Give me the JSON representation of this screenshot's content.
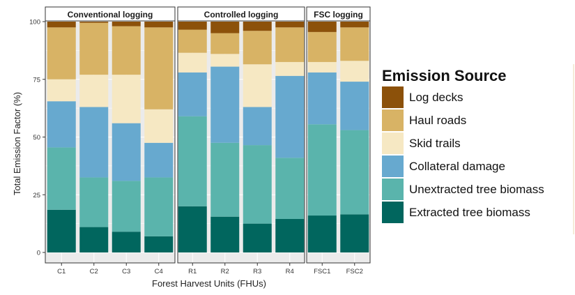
{
  "chart_data": {
    "type": "bar",
    "stacked": true,
    "ylabel": "Total Emission Factor (%)",
    "xlabel": "Forest Harvest Units (FHUs)",
    "ylim": [
      0,
      100
    ],
    "y_ticks": [
      0,
      25,
      50,
      75,
      100
    ],
    "grid": true,
    "legend": {
      "title": "Emission Source",
      "placement": "right",
      "entries": [
        "Log decks",
        "Haul roads",
        "Skid trails",
        "Collateral damage",
        "Unextracted tree biomass",
        "Extracted tree biomass"
      ]
    },
    "panels": [
      {
        "title": "Conventional logging",
        "categories": [
          "C1",
          "C2",
          "C3",
          "C4"
        ],
        "series": [
          {
            "name": "Extracted tree biomass",
            "values": [
              18.5,
              11,
              9,
              7
            ]
          },
          {
            "name": "Unextracted tree biomass",
            "values": [
              27,
              21.5,
              22,
              25.5
            ]
          },
          {
            "name": "Collateral damage",
            "values": [
              20,
              30.5,
              25,
              15
            ]
          },
          {
            "name": "Skid trails",
            "values": [
              9.5,
              14,
              21,
              14.5
            ]
          },
          {
            "name": "Haul roads",
            "values": [
              22.5,
              22.5,
              21,
              35.5
            ]
          },
          {
            "name": "Log decks",
            "values": [
              2.5,
              0.5,
              2,
              2.5
            ]
          }
        ]
      },
      {
        "title": "Controlled logging",
        "categories": [
          "R1",
          "R2",
          "R3",
          "R4"
        ],
        "series": [
          {
            "name": "Extracted tree biomass",
            "values": [
              20,
              15.5,
              12.5,
              14.5
            ]
          },
          {
            "name": "Unextracted tree biomass",
            "values": [
              39,
              32,
              34,
              26.5
            ]
          },
          {
            "name": "Collateral damage",
            "values": [
              19,
              33,
              16.5,
              35.5
            ]
          },
          {
            "name": "Skid trails",
            "values": [
              8.5,
              5.5,
              18.5,
              6
            ]
          },
          {
            "name": "Haul roads",
            "values": [
              10,
              9,
              14.5,
              15
            ]
          },
          {
            "name": "Log decks",
            "values": [
              3.5,
              5,
              4,
              2.5
            ]
          }
        ]
      },
      {
        "title": "FSC logging",
        "categories": [
          "FSC1",
          "FSC2"
        ],
        "series": [
          {
            "name": "Extracted tree biomass",
            "values": [
              16,
              16.5
            ]
          },
          {
            "name": "Unextracted tree biomass",
            "values": [
              39.5,
              36.5
            ]
          },
          {
            "name": "Collateral damage",
            "values": [
              22.5,
              21
            ]
          },
          {
            "name": "Skid trails",
            "values": [
              4.5,
              9
            ]
          },
          {
            "name": "Haul roads",
            "values": [
              13,
              14.5
            ]
          },
          {
            "name": "Log decks",
            "values": [
              4.5,
              2.5
            ]
          }
        ]
      }
    ]
  },
  "colors": {
    "Log decks": "#8c510a",
    "Haul roads": "#d8b365",
    "Skid trails": "#f6e8c3",
    "Collateral damage": "#67a9cf",
    "Unextracted tree biomass": "#5ab4ac",
    "Extracted tree biomass": "#01665e",
    "panel_bg": "#ebebeb",
    "grid": "#ffffff",
    "strip_bg": "#ffffff",
    "frame": "#333333"
  }
}
